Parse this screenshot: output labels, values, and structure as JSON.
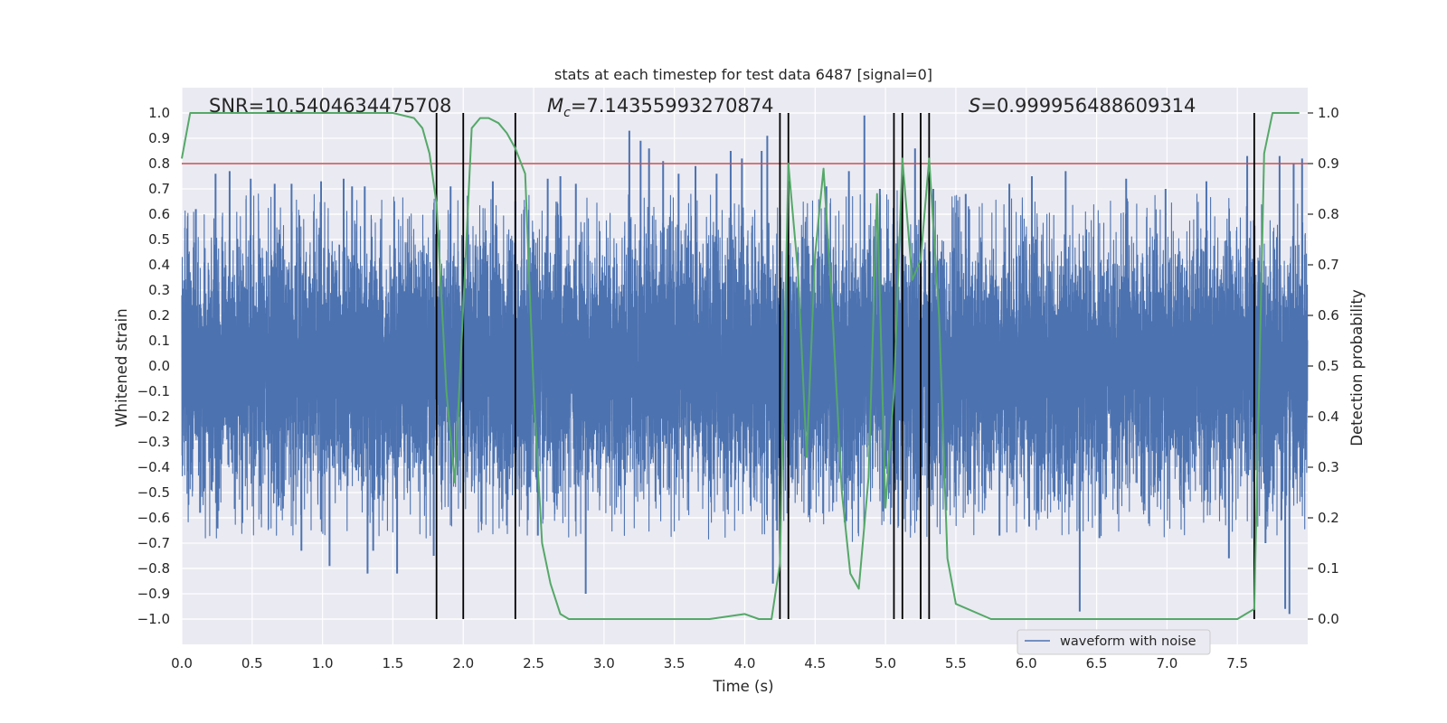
{
  "chart_data": {
    "type": "line",
    "title": "stats at each timestep for test data 6487 [signal=0]",
    "xlabel": "Time (s)",
    "ylabel": "Whitened strain",
    "ylabel_right": "Detection probability",
    "xlim": [
      0,
      8
    ],
    "ylim": [
      -1.1,
      1.1
    ],
    "ylim_right": [
      -0.05,
      1.05
    ],
    "x_ticks": [
      "0.0",
      "0.5",
      "1.0",
      "1.5",
      "2.0",
      "2.5",
      "3.0",
      "3.5",
      "4.0",
      "4.5",
      "5.0",
      "5.5",
      "6.0",
      "6.5",
      "7.0",
      "7.5"
    ],
    "y_ticks": [
      "1.0",
      "0.9",
      "0.8",
      "0.7",
      "0.6",
      "0.5",
      "0.4",
      "0.3",
      "0.2",
      "0.1",
      "0.0",
      "−0.1",
      "−0.2",
      "−0.3",
      "−0.4",
      "−0.5",
      "−0.6",
      "−0.7",
      "−0.8",
      "−0.9",
      "−1.0"
    ],
    "y_ticks_right": [
      "1.0",
      "0.9",
      "0.8",
      "0.7",
      "0.6",
      "0.5",
      "0.4",
      "0.3",
      "0.2",
      "0.1",
      "0.0"
    ],
    "annotations": {
      "snr": "SNR=10.5404634475708",
      "mc_symbol": "M",
      "mc_sub": "c",
      "mc_value": "=7.14355993270874",
      "s_symbol": "S",
      "s_value": "=0.999956488609314"
    },
    "legend": {
      "label": "waveform with noise",
      "placement": "lower-right"
    },
    "grid": true,
    "threshold": {
      "value": 0.9,
      "axis": "right",
      "color": "#c44e52"
    },
    "vertical_markers_x": [
      1.81,
      2.0,
      2.37,
      4.25,
      4.31,
      5.06,
      5.12,
      5.25,
      5.31,
      7.62
    ],
    "series": [
      {
        "name": "waveform with noise",
        "axis": "left",
        "color": "#4c72b0",
        "kind": "noise",
        "sample_rate_hz": 2048,
        "core_amplitude": 0.42,
        "peak_spikes": [
          [
            0.1,
            0.62
          ],
          [
            0.13,
            -0.58
          ],
          [
            0.24,
            0.76
          ],
          [
            0.34,
            0.77
          ],
          [
            0.43,
            -0.62
          ],
          [
            0.49,
            0.74
          ],
          [
            0.66,
            0.72
          ],
          [
            0.78,
            0.72
          ],
          [
            0.85,
            -0.73
          ],
          [
            0.99,
            0.73
          ],
          [
            1.05,
            -0.79
          ],
          [
            1.15,
            0.74
          ],
          [
            1.21,
            0.71
          ],
          [
            1.3,
            0.71
          ],
          [
            1.32,
            -0.82
          ],
          [
            1.36,
            -0.73
          ],
          [
            1.53,
            -0.82
          ],
          [
            1.79,
            -0.75
          ],
          [
            1.91,
            0.71
          ],
          [
            2.21,
            0.73
          ],
          [
            2.31,
            -0.63
          ],
          [
            2.37,
            0.65
          ],
          [
            2.53,
            -0.67
          ],
          [
            2.6,
            0.74
          ],
          [
            2.69,
            0.75
          ],
          [
            2.8,
            0.72
          ],
          [
            2.87,
            -0.9
          ],
          [
            3.18,
            0.93
          ],
          [
            3.26,
            0.89
          ],
          [
            3.32,
            0.86
          ],
          [
            3.42,
            0.81
          ],
          [
            3.53,
            0.76
          ],
          [
            3.65,
            0.79
          ],
          [
            3.8,
            0.76
          ],
          [
            3.9,
            0.85
          ],
          [
            3.98,
            0.82
          ],
          [
            4.12,
            0.85
          ],
          [
            4.16,
            0.91
          ],
          [
            4.2,
            -0.86
          ],
          [
            4.23,
            -0.65
          ],
          [
            4.58,
            0.71
          ],
          [
            4.74,
            0.77
          ],
          [
            4.85,
            0.99
          ],
          [
            4.96,
            0.7
          ],
          [
            5.21,
            0.86
          ],
          [
            5.34,
            0.7
          ],
          [
            5.57,
            0.68
          ],
          [
            5.81,
            -0.67
          ],
          [
            5.88,
            0.72
          ],
          [
            6.04,
            0.75
          ],
          [
            6.28,
            0.77
          ],
          [
            6.38,
            -0.97
          ],
          [
            6.52,
            -0.68
          ],
          [
            6.71,
            0.74
          ],
          [
            6.99,
            0.7
          ],
          [
            7.28,
            0.73
          ],
          [
            7.44,
            -0.76
          ],
          [
            7.57,
            0.83
          ],
          [
            7.7,
            -0.7
          ],
          [
            7.8,
            0.83
          ],
          [
            7.84,
            -0.96
          ],
          [
            7.87,
            -0.98
          ],
          [
            7.9,
            0.8
          ],
          [
            7.96,
            0.82
          ]
        ]
      },
      {
        "name": "detection probability",
        "axis": "right",
        "color": "#55a868",
        "x": [
          0.0,
          0.06,
          0.5,
          1.0,
          1.5,
          1.65,
          1.71,
          1.76,
          1.81,
          1.88,
          1.94,
          2.0,
          2.06,
          2.12,
          2.18,
          2.25,
          2.31,
          2.37,
          2.44,
          2.5,
          2.56,
          2.62,
          2.69,
          2.75,
          2.81,
          3.0,
          3.25,
          3.5,
          3.75,
          4.0,
          4.1,
          4.19,
          4.25,
          4.31,
          4.38,
          4.44,
          4.5,
          4.56,
          4.62,
          4.69,
          4.75,
          4.81,
          4.88,
          4.94,
          5.0,
          5.06,
          5.12,
          5.19,
          5.25,
          5.31,
          5.38,
          5.44,
          5.5,
          5.75,
          6.0,
          6.25,
          6.5,
          7.0,
          7.5,
          7.56,
          7.62,
          7.69,
          7.75,
          7.94
        ],
        "values": [
          0.91,
          1.0,
          1.0,
          1.0,
          1.0,
          0.99,
          0.97,
          0.92,
          0.82,
          0.45,
          0.27,
          0.62,
          0.97,
          0.99,
          0.99,
          0.98,
          0.96,
          0.93,
          0.88,
          0.45,
          0.15,
          0.07,
          0.01,
          0.0,
          0.0,
          0.0,
          0.0,
          0.0,
          0.0,
          0.01,
          0.0,
          0.0,
          0.11,
          0.9,
          0.68,
          0.32,
          0.72,
          0.89,
          0.62,
          0.25,
          0.09,
          0.06,
          0.28,
          0.84,
          0.22,
          0.45,
          0.91,
          0.67,
          0.71,
          0.91,
          0.6,
          0.12,
          0.03,
          0.0,
          0.0,
          0.0,
          0.0,
          0.0,
          0.0,
          0.01,
          0.02,
          0.92,
          1.0,
          1.0
        ]
      }
    ]
  }
}
